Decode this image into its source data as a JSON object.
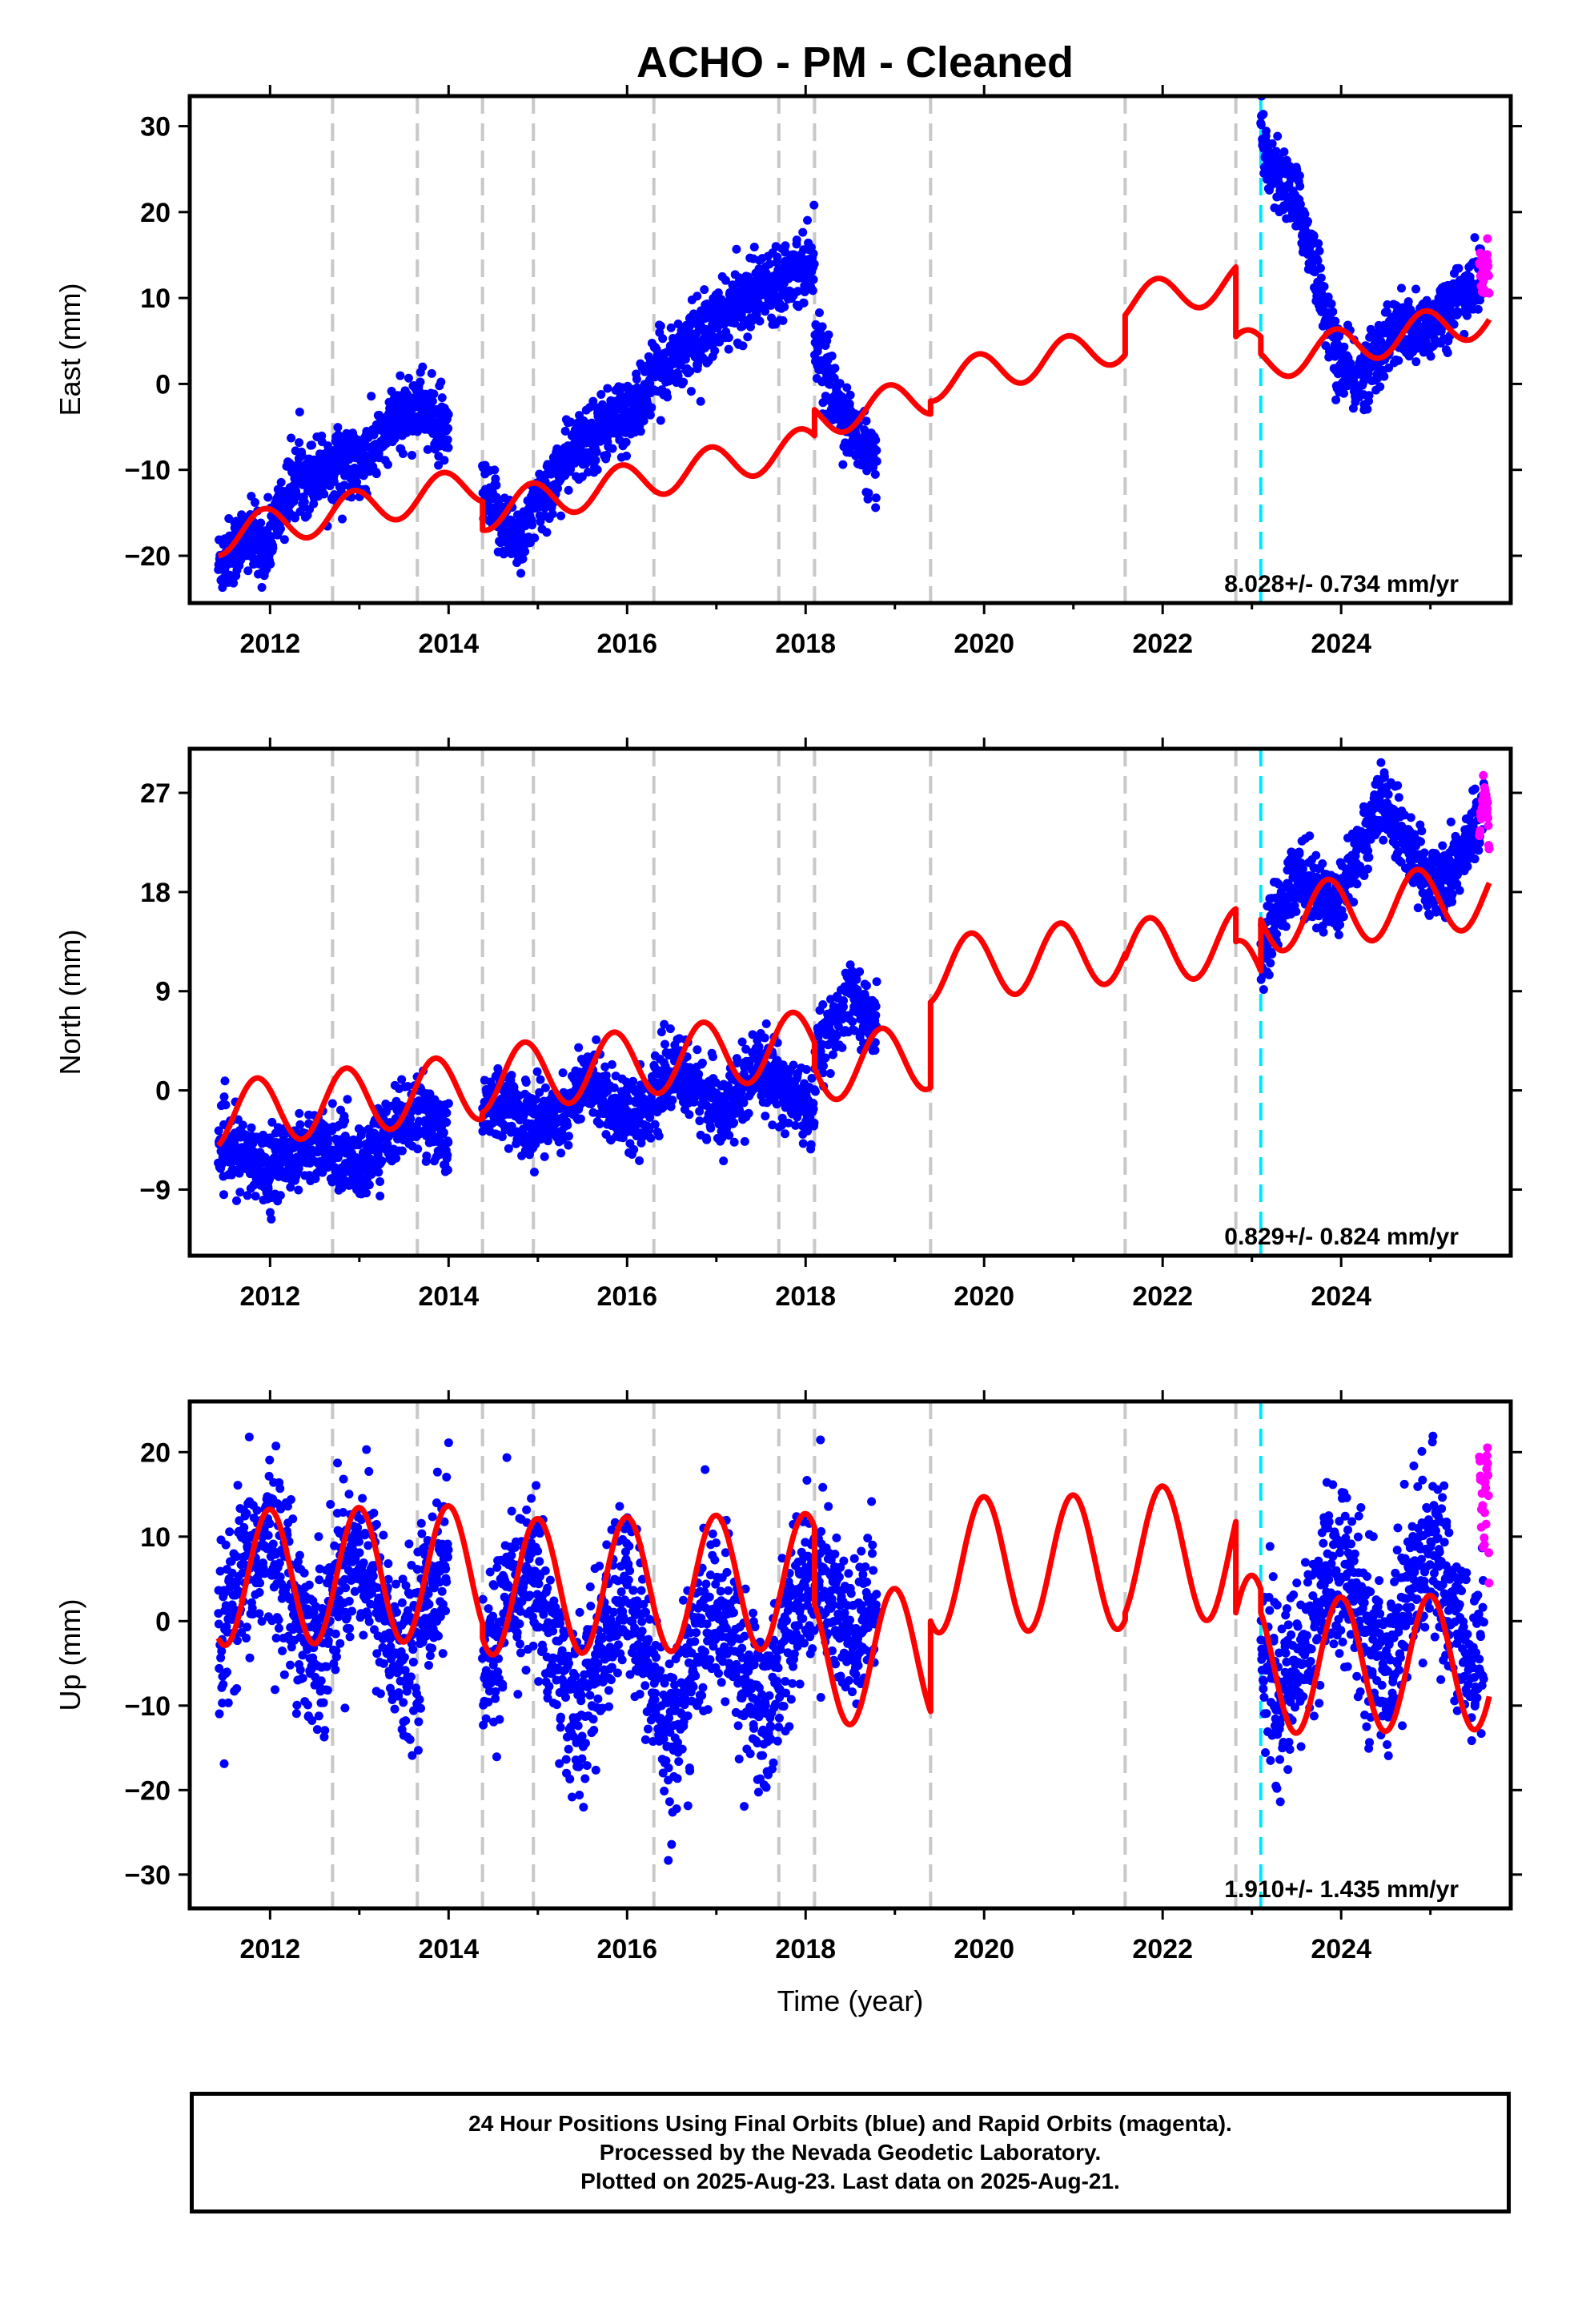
{
  "chart_data": [
    {
      "type": "scatter",
      "title": "ACHO  - PM - Cleaned",
      "ylabel": "East (mm)",
      "xlabel": "",
      "xlim": [
        2011.1,
        2025.9
      ],
      "ylim": [
        -25.5,
        33.5
      ],
      "xticks": [
        2012,
        2014,
        2016,
        2018,
        2020,
        2022,
        2024
      ],
      "yticks": [
        -20,
        -10,
        0,
        10,
        20,
        30
      ],
      "ytick_labels": [
        "−20",
        "−10",
        "0",
        "10",
        "20",
        "30"
      ],
      "annotation": "8.028+/- 0.734 mm/yr",
      "event_lines_gray": [
        2012.7,
        2013.65,
        2014.38,
        2014.95,
        2016.3,
        2017.7,
        2018.1,
        2019.4,
        2021.58,
        2022.82
      ],
      "event_lines_cyan": [
        2023.1
      ],
      "series": [
        {
          "name": "Final Orbits",
          "color": "#0000ff",
          "segments": [
            {
              "x_start": 2011.42,
              "x_end": 2014.0,
              "points": [
                [
                  2011.42,
                  -21
                ],
                [
                  2011.7,
                  -18
                ],
                [
                  2011.95,
                  -19
                ],
                [
                  2012.1,
                  -15
                ],
                [
                  2012.3,
                  -11
                ],
                [
                  2012.6,
                  -10
                ],
                [
                  2012.8,
                  -9
                ],
                [
                  2013.0,
                  -10
                ],
                [
                  2013.2,
                  -7
                ],
                [
                  2013.45,
                  -4
                ],
                [
                  2013.65,
                  -2
                ],
                [
                  2013.8,
                  -4
                ],
                [
                  2014.0,
                  -6
                ]
              ]
            },
            {
              "x_start": 2014.38,
              "x_end": 2018.1,
              "points": [
                [
                  2014.38,
                  -13
                ],
                [
                  2014.6,
                  -16
                ],
                [
                  2014.8,
                  -18
                ],
                [
                  2015.0,
                  -14
                ],
                [
                  2015.3,
                  -9
                ],
                [
                  2015.6,
                  -6
                ],
                [
                  2015.9,
                  -4
                ],
                [
                  2016.1,
                  -3
                ],
                [
                  2016.3,
                  1
                ],
                [
                  2016.6,
                  4
                ],
                [
                  2016.9,
                  6
                ],
                [
                  2017.2,
                  9
                ],
                [
                  2017.5,
                  11
                ],
                [
                  2017.8,
                  13
                ],
                [
                  2018.05,
                  14
                ]
              ]
            },
            {
              "x_start": 2018.1,
              "x_end": 2018.8,
              "points": [
                [
                  2018.1,
                  6
                ],
                [
                  2018.3,
                  -1
                ],
                [
                  2018.5,
                  -5
                ],
                [
                  2018.8,
                  -10
                ]
              ]
            },
            {
              "x_start": 2023.1,
              "x_end": 2025.6,
              "points": [
                [
                  2023.1,
                  28
                ],
                [
                  2023.3,
                  24
                ],
                [
                  2023.55,
                  20
                ],
                [
                  2023.75,
                  12
                ],
                [
                  2023.95,
                  3
                ],
                [
                  2024.15,
                  0
                ],
                [
                  2024.35,
                  3
                ],
                [
                  2024.6,
                  6
                ],
                [
                  2024.9,
                  6
                ],
                [
                  2025.1,
                  8
                ],
                [
                  2025.3,
                  10
                ],
                [
                  2025.55,
                  12
                ]
              ]
            }
          ]
        },
        {
          "name": "Rapid Orbits",
          "color": "#ff00ff",
          "segments": [
            {
              "x_start": 2025.55,
              "x_end": 2025.66,
              "points": [
                [
                  2025.55,
                  14
                ],
                [
                  2025.6,
                  12
                ],
                [
                  2025.64,
                  15
                ],
                [
                  2025.66,
                  10
                ]
              ]
            }
          ]
        },
        {
          "name": "Model",
          "color": "#ff0000",
          "trend": 2.1,
          "annual_amp": 2.2,
          "phase": 2.0,
          "breaks": [
            [
              2011.42,
              -20
            ],
            [
              2014.38,
              -17
            ],
            [
              2018.1,
              -3
            ],
            [
              2019.4,
              -2
            ],
            [
              2021.58,
              8
            ],
            [
              2022.82,
              5.5
            ],
            [
              2023.1,
              3.5
            ]
          ],
          "x_end": 2025.66
        }
      ]
    },
    {
      "type": "scatter",
      "title": "",
      "ylabel": "North (mm)",
      "xlabel": "",
      "xlim": [
        2011.1,
        2025.9
      ],
      "ylim": [
        -15,
        31
      ],
      "xticks": [
        2012,
        2014,
        2016,
        2018,
        2020,
        2022,
        2024
      ],
      "yticks": [
        -9,
        0,
        9,
        18,
        27
      ],
      "ytick_labels": [
        "−9",
        "0",
        "9",
        "18",
        "27"
      ],
      "annotation": "0.829+/- 0.824 mm/yr",
      "event_lines_gray": [
        2012.7,
        2013.65,
        2014.38,
        2014.95,
        2016.3,
        2017.7,
        2018.1,
        2019.4,
        2021.58,
        2022.82
      ],
      "event_lines_cyan": [
        2023.1
      ],
      "series": [
        {
          "name": "Final Orbits",
          "color": "#0000ff",
          "segments": [
            {
              "x_start": 2011.42,
              "x_end": 2014.0,
              "points": [
                [
                  2011.42,
                  -5
                ],
                [
                  2011.7,
                  -6
                ],
                [
                  2012.0,
                  -7
                ],
                [
                  2012.4,
                  -5
                ],
                [
                  2012.7,
                  -5
                ],
                [
                  2013.0,
                  -7
                ],
                [
                  2013.4,
                  -3
                ],
                [
                  2013.7,
                  -2
                ],
                [
                  2014.0,
                  -4
                ]
              ]
            },
            {
              "x_start": 2014.38,
              "x_end": 2018.1,
              "points": [
                [
                  2014.38,
                  -2
                ],
                [
                  2014.6,
                  -1
                ],
                [
                  2014.9,
                  -3
                ],
                [
                  2015.3,
                  -2
                ],
                [
                  2015.6,
                  1
                ],
                [
                  2015.9,
                  -2
                ],
                [
                  2016.2,
                  -2
                ],
                [
                  2016.5,
                  2
                ],
                [
                  2016.8,
                  0
                ],
                [
                  2017.1,
                  -2
                ],
                [
                  2017.5,
                  2
                ],
                [
                  2017.8,
                  0
                ],
                [
                  2018.05,
                  -2
                ]
              ]
            },
            {
              "x_start": 2018.1,
              "x_end": 2018.8,
              "points": [
                [
                  2018.1,
                  3
                ],
                [
                  2018.35,
                  6
                ],
                [
                  2018.5,
                  9
                ],
                [
                  2018.75,
                  6
                ]
              ]
            },
            {
              "x_start": 2023.1,
              "x_end": 2025.6,
              "points": [
                [
                  2023.1,
                  12
                ],
                [
                  2023.3,
                  16
                ],
                [
                  2023.5,
                  20
                ],
                [
                  2023.75,
                  18
                ],
                [
                  2023.95,
                  17
                ],
                [
                  2024.2,
                  22
                ],
                [
                  2024.45,
                  26
                ],
                [
                  2024.7,
                  23
                ],
                [
                  2024.95,
                  19
                ],
                [
                  2025.2,
                  19
                ],
                [
                  2025.45,
                  23
                ],
                [
                  2025.6,
                  25
                ]
              ]
            }
          ]
        },
        {
          "name": "Rapid Orbits",
          "color": "#ff00ff",
          "segments": [
            {
              "x_start": 2025.55,
              "x_end": 2025.66,
              "points": [
                [
                  2025.55,
                  24
                ],
                [
                  2025.6,
                  27
                ],
                [
                  2025.64,
                  25
                ],
                [
                  2025.66,
                  22
                ]
              ]
            }
          ]
        },
        {
          "name": "Model",
          "color": "#ff0000",
          "trend": 0.9,
          "annual_amp": 3.0,
          "phase": 2.5,
          "breaks": [
            [
              2011.42,
              -5
            ],
            [
              2014.38,
              -2
            ],
            [
              2018.1,
              2
            ],
            [
              2019.4,
              8
            ],
            [
              2021.58,
              12
            ],
            [
              2022.82,
              13.5
            ],
            [
              2023.1,
              15.5
            ]
          ],
          "x_end": 2025.66
        }
      ]
    },
    {
      "type": "scatter",
      "title": "",
      "ylabel": "Up (mm)",
      "xlabel": "Time (year)",
      "xlim": [
        2011.1,
        2025.9
      ],
      "ylim": [
        -34,
        26
      ],
      "xticks": [
        2012,
        2014,
        2016,
        2018,
        2020,
        2022,
        2024
      ],
      "yticks": [
        -30,
        -20,
        -10,
        0,
        10,
        20
      ],
      "ytick_labels": [
        "−30",
        "−20",
        "−10",
        "0",
        "10",
        "20"
      ],
      "annotation": "1.910+/- 1.435 mm/yr",
      "event_lines_gray": [
        2012.7,
        2013.65,
        2014.38,
        2014.95,
        2016.3,
        2017.7,
        2018.1,
        2019.4,
        2021.58,
        2022.82
      ],
      "event_lines_cyan": [
        2023.1
      ],
      "series": [
        {
          "name": "Final Orbits",
          "color": "#0000ff",
          "segments": [
            {
              "x_start": 2011.42,
              "x_end": 2014.0,
              "points": [
                [
                  2011.42,
                  -4
                ],
                [
                  2011.7,
                  5
                ],
                [
                  2012.0,
                  10
                ],
                [
                  2012.3,
                  2
                ],
                [
                  2012.5,
                  -4
                ],
                [
                  2012.8,
                  6
                ],
                [
                  2013.0,
                  9
                ],
                [
                  2013.3,
                  0
                ],
                [
                  2013.5,
                  -6
                ],
                [
                  2013.75,
                  3
                ],
                [
                  2014.0,
                  8
                ]
              ]
            },
            {
              "x_start": 2014.38,
              "x_end": 2018.1,
              "points": [
                [
                  2014.38,
                  -7
                ],
                [
                  2014.7,
                  3
                ],
                [
                  2014.95,
                  6
                ],
                [
                  2015.2,
                  -4
                ],
                [
                  2015.45,
                  -12
                ],
                [
                  2015.75,
                  -2
                ],
                [
                  2016.0,
                  4
                ],
                [
                  2016.3,
                  -8
                ],
                [
                  2016.5,
                  -14
                ],
                [
                  2016.75,
                  -4
                ],
                [
                  2017.0,
                  2
                ],
                [
                  2017.3,
                  -6
                ],
                [
                  2017.55,
                  -12
                ],
                [
                  2017.8,
                  0
                ],
                [
                  2018.05,
                  5
                ]
              ]
            },
            {
              "x_start": 2018.1,
              "x_end": 2018.8,
              "points": [
                [
                  2018.1,
                  6
                ],
                [
                  2018.35,
                  2
                ],
                [
                  2018.55,
                  -4
                ],
                [
                  2018.8,
                  4
                ]
              ]
            },
            {
              "x_start": 2023.1,
              "x_end": 2025.6,
              "points": [
                [
                  2023.1,
                  -2
                ],
                [
                  2023.3,
                  -10
                ],
                [
                  2023.5,
                  -6
                ],
                [
                  2023.75,
                  2
                ],
                [
                  2024.0,
                  6
                ],
                [
                  2024.25,
                  0
                ],
                [
                  2024.5,
                  -6
                ],
                [
                  2024.75,
                  4
                ],
                [
                  2025.0,
                  9
                ],
                [
                  2025.25,
                  2
                ],
                [
                  2025.45,
                  -6
                ],
                [
                  2025.6,
                  0
                ]
              ]
            }
          ]
        },
        {
          "name": "Rapid Orbits",
          "color": "#ff00ff",
          "segments": [
            {
              "x_start": 2025.55,
              "x_end": 2025.66,
              "points": [
                [
                  2025.55,
                  18
                ],
                [
                  2025.6,
                  10
                ],
                [
                  2025.64,
                  22
                ],
                [
                  2025.66,
                  4
                ]
              ]
            }
          ]
        },
        {
          "name": "Model",
          "color": "#ff0000",
          "trend": 0.2,
          "annual_amp": 8.0,
          "phase": 1.6,
          "breaks": [
            [
              2011.42,
              -2
            ],
            [
              2014.38,
              -2
            ],
            [
              2018.1,
              2
            ],
            [
              2019.4,
              0
            ],
            [
              2021.58,
              1
            ],
            [
              2022.82,
              1
            ],
            [
              2023.1,
              1
            ]
          ],
          "x_end": 2025.66
        }
      ]
    }
  ],
  "footer": {
    "line1": "24 Hour Positions Using Final Orbits (blue) and Rapid Orbits (magenta).",
    "line2": "Processed by the Nevada Geodetic Laboratory.",
    "line3": "Plotted on 2025-Aug-23. Last data on 2025-Aug-21."
  }
}
